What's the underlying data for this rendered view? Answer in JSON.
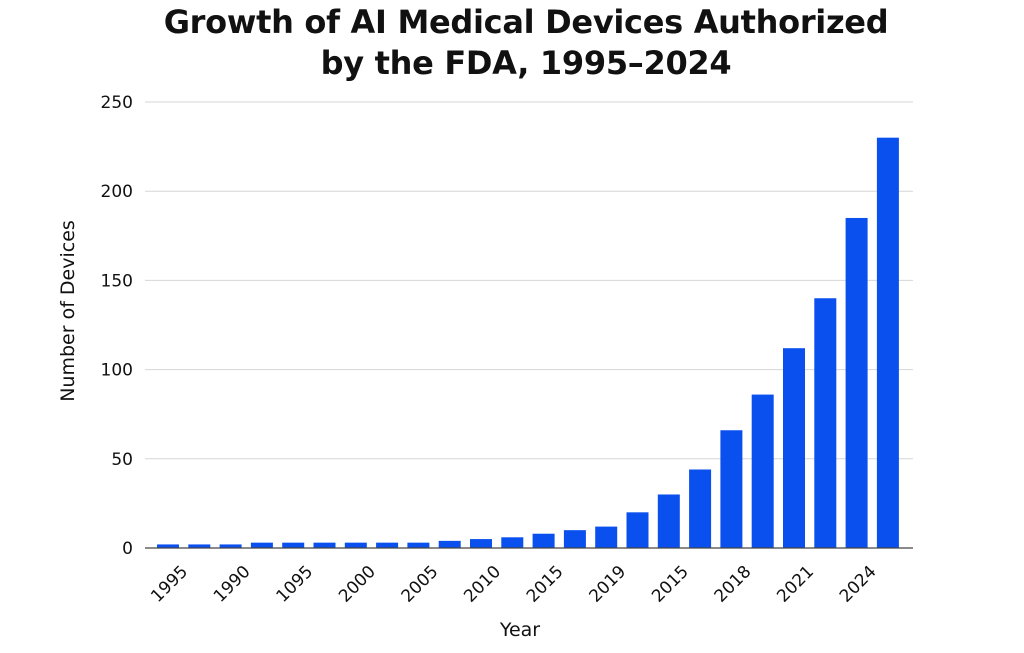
{
  "chart_data": {
    "type": "bar",
    "title_lines": [
      "Growth of AI Medical Devices Authorized",
      "by the FDA, 1995–2024"
    ],
    "xlabel": "Year",
    "ylabel": "Number of Devices",
    "ylim": [
      0,
      250
    ],
    "yticks": [
      0,
      50,
      100,
      150,
      200,
      250
    ],
    "grid": true,
    "bar_color": "#0a50ee",
    "categories": [
      "",
      "",
      "",
      "",
      "",
      "",
      "",
      "",
      "",
      "",
      "",
      "",
      "",
      "",
      "",
      "",
      "",
      "",
      "",
      "",
      "",
      "",
      "",
      ""
    ],
    "values": [
      2,
      2,
      2,
      3,
      3,
      3,
      3,
      3,
      3,
      4,
      5,
      6,
      8,
      10,
      12,
      20,
      30,
      44,
      66,
      86,
      112,
      140,
      185,
      230
    ],
    "x_tick_labels": [
      {
        "label": "1995",
        "bar_index": 0
      },
      {
        "label": "1990",
        "bar_index": 2
      },
      {
        "label": "1095",
        "bar_index": 4
      },
      {
        "label": "2000",
        "bar_index": 6
      },
      {
        "label": "2005",
        "bar_index": 8
      },
      {
        "label": "2010",
        "bar_index": 10
      },
      {
        "label": "2015",
        "bar_index": 12
      },
      {
        "label": "2019",
        "bar_index": 14
      },
      {
        "label": "2015",
        "bar_index": 16
      },
      {
        "label": "2018",
        "bar_index": 18
      },
      {
        "label": "2021",
        "bar_index": 20
      },
      {
        "label": "2024",
        "bar_index": 22
      }
    ]
  }
}
